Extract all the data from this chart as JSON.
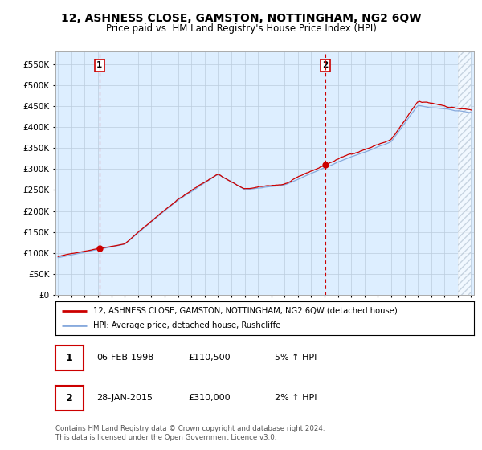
{
  "title": "12, ASHNESS CLOSE, GAMSTON, NOTTINGHAM, NG2 6QW",
  "subtitle": "Price paid vs. HM Land Registry's House Price Index (HPI)",
  "title_fontsize": 10,
  "subtitle_fontsize": 8.5,
  "legend_line1": "12, ASHNESS CLOSE, GAMSTON, NOTTINGHAM, NG2 6QW (detached house)",
  "legend_line2": "HPI: Average price, detached house, Rushcliffe",
  "sale1_label": "1",
  "sale1_date": "06-FEB-1998",
  "sale1_price": "£110,500",
  "sale1_hpi": "5% ↑ HPI",
  "sale2_label": "2",
  "sale2_date": "28-JAN-2015",
  "sale2_price": "£310,000",
  "sale2_hpi": "2% ↑ HPI",
  "footnote": "Contains HM Land Registry data © Crown copyright and database right 2024.\nThis data is licensed under the Open Government Licence v3.0.",
  "red_color": "#cc0000",
  "blue_color": "#88aadd",
  "bg_color": "#ddeeff",
  "grid_color": "#bbccdd",
  "vline_color": "#cc0000",
  "marker_color": "#cc0000",
  "ylim": [
    0,
    580000
  ],
  "yticks": [
    0,
    50000,
    100000,
    150000,
    200000,
    250000,
    300000,
    350000,
    400000,
    450000,
    500000,
    550000
  ],
  "year_start": 1995,
  "year_end": 2025,
  "sale1_year": 1998.1,
  "sale2_year": 2015.07,
  "sale1_value": 110500,
  "sale2_value": 310000
}
